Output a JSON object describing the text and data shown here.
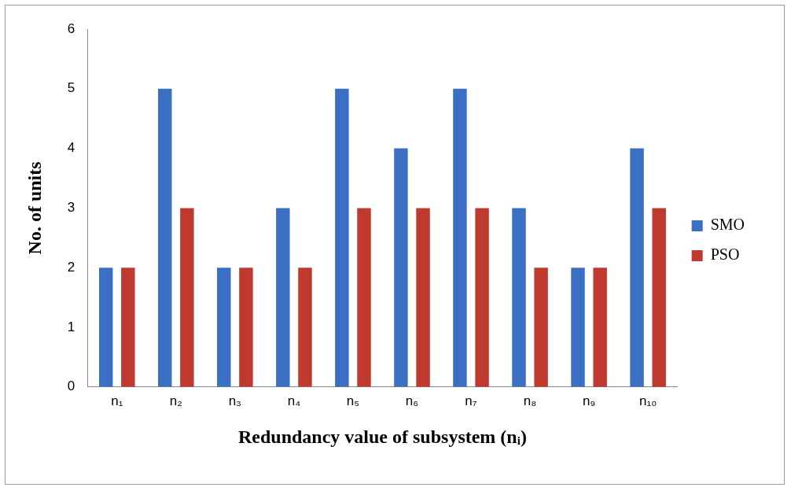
{
  "chart_data": {
    "type": "bar",
    "xlabel": "Redundancy value of subsystem (nᵢ)",
    "ylabel": "No. of units",
    "categories": [
      "n₁",
      "n₂",
      "n₃",
      "n₄",
      "n₅",
      "n₆",
      "n₇",
      "n₈",
      "n₉",
      "n₁₀"
    ],
    "series": [
      {
        "name": "SMO",
        "color": "#3a6fc4",
        "values": [
          2,
          5,
          2,
          3,
          5,
          4,
          5,
          3,
          2,
          4
        ]
      },
      {
        "name": "PSO",
        "color": "#c0392f",
        "values": [
          2,
          3,
          2,
          2,
          3,
          3,
          3,
          2,
          2,
          3
        ]
      }
    ],
    "ylim": [
      0,
      6
    ],
    "yticks": [
      0,
      1,
      2,
      3,
      4,
      5,
      6
    ],
    "grid": false,
    "legend": "right"
  }
}
